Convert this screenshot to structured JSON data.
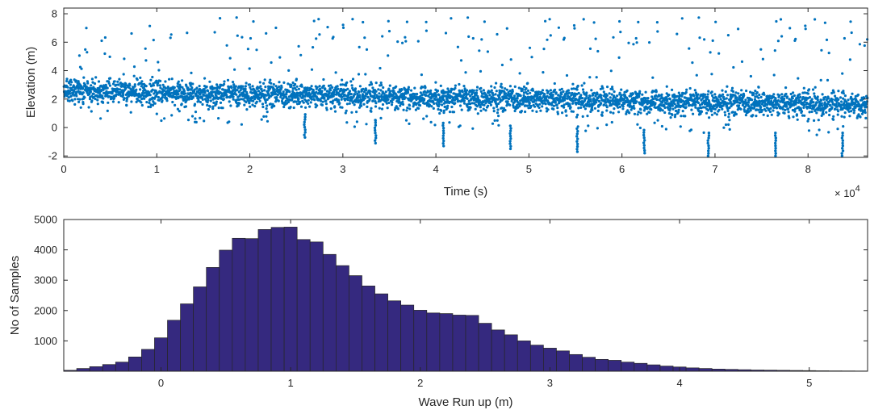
{
  "chart_data": [
    {
      "type": "scatter",
      "xlabel": "Time (s)",
      "ylabel": "Elevation (m)",
      "x_exponent_label": "× 10",
      "x_exponent": "4",
      "xlim": [
        0,
        86400
      ],
      "ylim": [
        -2.1,
        8.4
      ],
      "xticks": [
        0,
        10000,
        20000,
        30000,
        40000,
        50000,
        60000,
        70000,
        80000
      ],
      "xtick_labels": [
        "0",
        "1",
        "2",
        "3",
        "4",
        "5",
        "6",
        "7",
        "8"
      ],
      "yticks": [
        -2,
        0,
        2,
        4,
        6,
        8
      ],
      "ytick_labels": [
        "-2",
        "0",
        "2",
        "4",
        "6",
        "8"
      ],
      "color": "#0072bd",
      "grid": false,
      "series_description": {
        "n_points_shown": 4000,
        "mean_start": 2.6,
        "mean_end": 1.6,
        "typical_spread": 1.1,
        "max": 7.8,
        "min": -2.0,
        "deep_dips_x": [
          25900,
          33500,
          40800,
          48000,
          55200,
          62400,
          69300,
          76500,
          83700
        ],
        "deep_dips_y": [
          -0.7,
          -1.1,
          -1.3,
          -1.5,
          -1.7,
          -1.8,
          -2.0,
          -2.0,
          -2.0
        ]
      }
    },
    {
      "type": "bar",
      "xlabel": "Wave Run up (m)",
      "ylabel": "No of Samples",
      "xlim": [
        -0.75,
        5.45
      ],
      "ylim": [
        0,
        5000
      ],
      "xticks": [
        0,
        1,
        2,
        3,
        4,
        5
      ],
      "xtick_labels": [
        "0",
        "1",
        "2",
        "3",
        "4",
        "5"
      ],
      "yticks": [
        1000,
        2000,
        3000,
        4000,
        5000
      ],
      "ytick_labels": [
        "1000",
        "2000",
        "3000",
        "4000",
        "5000"
      ],
      "bin_width": 0.1,
      "bin_start": -0.75,
      "color": "#35297f",
      "edge_color": "#262626",
      "values": [
        30,
        90,
        150,
        220,
        300,
        470,
        720,
        1100,
        1680,
        2220,
        2780,
        3420,
        3990,
        4380,
        4370,
        4670,
        4740,
        4750,
        4340,
        4260,
        3850,
        3480,
        3150,
        2810,
        2550,
        2320,
        2180,
        2010,
        1920,
        1900,
        1850,
        1840,
        1580,
        1360,
        1200,
        1000,
        860,
        760,
        670,
        550,
        460,
        390,
        360,
        300,
        260,
        210,
        170,
        140,
        110,
        90,
        70,
        60,
        50,
        40,
        35,
        30,
        25,
        20,
        15,
        12,
        10,
        8
      ]
    }
  ]
}
